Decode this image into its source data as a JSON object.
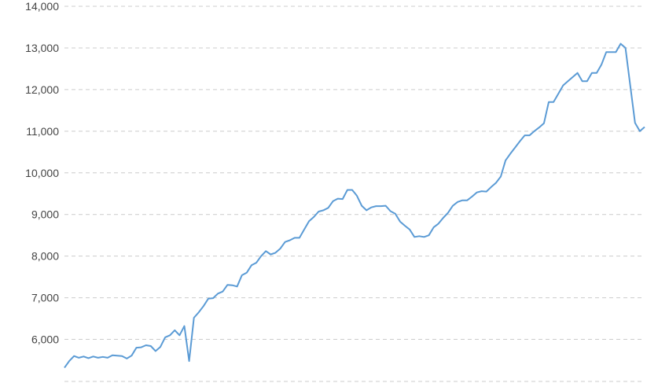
{
  "chart_data": {
    "type": "line",
    "title": "",
    "xlabel": "",
    "ylabel": "",
    "ylim": [
      5000,
      14000
    ],
    "yticks": [
      6000,
      7000,
      8000,
      9000,
      10000,
      11000,
      12000,
      13000,
      14000
    ],
    "ytick_labels": [
      "6,000",
      "7,000",
      "8,000",
      "9,000",
      "10,000",
      "11,000",
      "12,000",
      "13,000",
      "14,000"
    ],
    "grid": true,
    "line_color": "#5b9bd5",
    "recession_shading_color": "#e6e6e6",
    "shaded_from_index": 124,
    "values": [
      5320,
      5480,
      5600,
      5560,
      5590,
      5550,
      5590,
      5560,
      5580,
      5560,
      5620,
      5610,
      5600,
      5540,
      5610,
      5800,
      5810,
      5860,
      5840,
      5720,
      5820,
      6050,
      6100,
      6220,
      6100,
      6320,
      5480,
      6520,
      6650,
      6800,
      6980,
      6990,
      7100,
      7150,
      7310,
      7300,
      7270,
      7540,
      7600,
      7780,
      7840,
      8000,
      8120,
      8040,
      8080,
      8180,
      8340,
      8380,
      8440,
      8440,
      8640,
      8840,
      8940,
      9070,
      9100,
      9160,
      9320,
      9380,
      9370,
      9590,
      9590,
      9450,
      9210,
      9100,
      9170,
      9200,
      9200,
      9210,
      9080,
      9020,
      8830,
      8730,
      8640,
      8460,
      8480,
      8460,
      8500,
      8690,
      8780,
      8920,
      9040,
      9210,
      9300,
      9340,
      9340,
      9430,
      9530,
      9560,
      9550,
      9660,
      9760,
      9910,
      10300,
      10460,
      10610,
      10760,
      10900,
      10900,
      11000,
      11090,
      11190,
      11700,
      11700,
      11900,
      12100,
      12200,
      12300,
      12400,
      12200,
      12200,
      12400,
      12400,
      12600,
      12900,
      12900,
      12900,
      13100,
      13000,
      12100,
      11200,
      11000,
      11100
    ]
  }
}
